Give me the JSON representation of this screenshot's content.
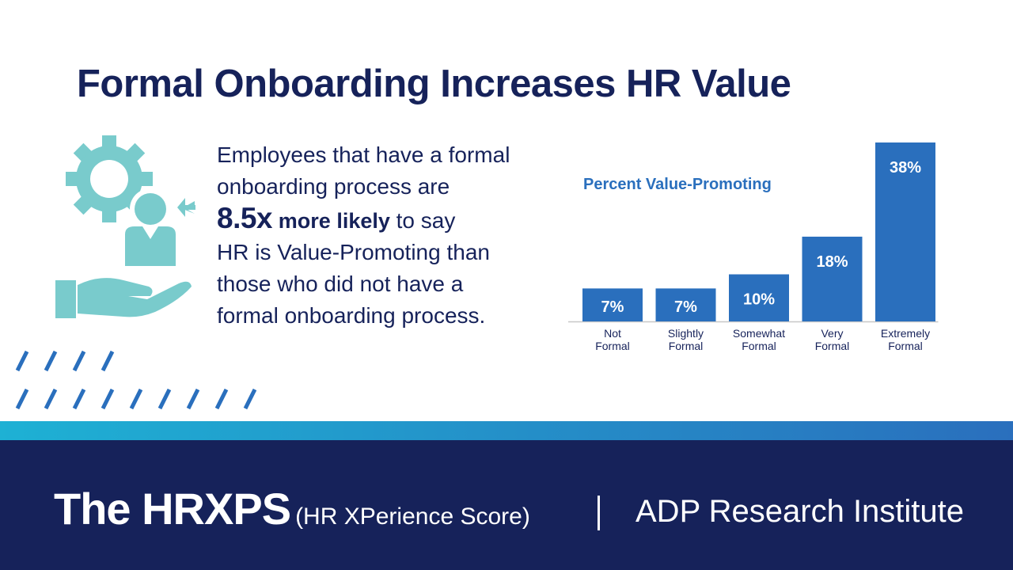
{
  "title": "Formal Onboarding Increases HR Value",
  "body": {
    "line1": "Employees that have a formal",
    "line2": "onboarding process are",
    "highlight_number": "8.5x",
    "highlight_text": "more likely",
    "line3_rest": "to say",
    "line4": "HR is Value-Promoting than",
    "line5": "those who did not have a",
    "line6": "formal onboarding process."
  },
  "colors": {
    "navy": "#16225a",
    "bar_blue": "#2a6fbd",
    "teal_icon": "#79cbcc",
    "stripe_cyan": "#1eb1d4"
  },
  "icons": [
    "gear-person-hand-icon"
  ],
  "chart_data": {
    "type": "bar",
    "title": "Percent Value-Promoting",
    "categories": [
      "Not Formal",
      "Slightly Formal",
      "Somewhat Formal",
      "Very Formal",
      "Extremely Formal"
    ],
    "category_lines": [
      [
        "Not",
        "Formal"
      ],
      [
        "Slightly",
        "Formal"
      ],
      [
        "Somewhat",
        "Formal"
      ],
      [
        "Very",
        "Formal"
      ],
      [
        "Extremely",
        "Formal"
      ]
    ],
    "values": [
      7,
      7,
      10,
      18,
      38
    ],
    "labels": [
      "7%",
      "7%",
      "10%",
      "18%",
      "38%"
    ],
    "ylim": [
      0,
      38
    ],
    "grid": false,
    "legend": "none"
  },
  "footer": {
    "brand": "The HRXPS",
    "brand_sub": "(HR XPerience Score)",
    "institute": "ADP Research Institute"
  }
}
